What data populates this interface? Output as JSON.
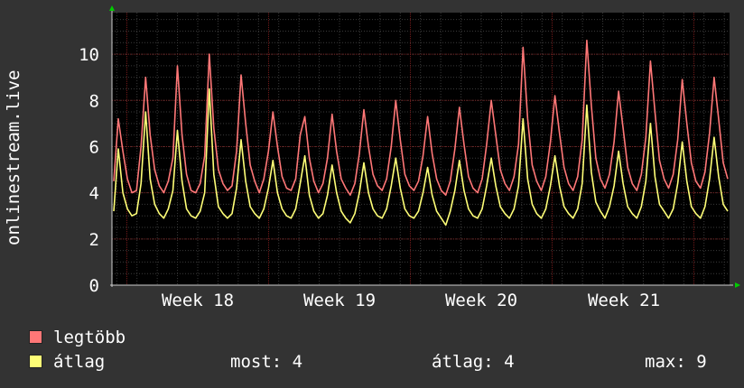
{
  "chart_data": {
    "type": "line",
    "title": "",
    "ylabel": "onlinestream.live",
    "ylim": [
      0,
      11.8
    ],
    "yticks": [
      0,
      2,
      4,
      6,
      8,
      10
    ],
    "xticks": [
      "Week 18",
      "Week 19",
      "Week 20",
      "Week 21"
    ],
    "grid": true,
    "colors": {
      "background": "#333333",
      "plot": "#000000",
      "grid": "#555555",
      "series_max": "#ff7777",
      "series_avg": "#ffff77",
      "axis_arrow": "#00cc00"
    },
    "series": [
      {
        "name": "legtöbb",
        "color": "#ff7777",
        "values": [
          4.5,
          7.2,
          5.8,
          4.6,
          4.0,
          4.1,
          6.0,
          9.0,
          6.5,
          5.0,
          4.3,
          4.0,
          4.5,
          5.5,
          9.5,
          6.5,
          4.8,
          4.1,
          4.0,
          4.4,
          5.6,
          10.0,
          6.8,
          5.0,
          4.4,
          4.1,
          4.3,
          5.8,
          9.1,
          7.0,
          5.2,
          4.5,
          4.0,
          4.6,
          5.8,
          7.5,
          6.0,
          4.7,
          4.2,
          4.1,
          4.6,
          6.5,
          7.3,
          5.5,
          4.5,
          4.0,
          4.4,
          5.5,
          7.4,
          5.8,
          4.6,
          4.2,
          3.9,
          4.4,
          5.7,
          7.6,
          6.0,
          4.8,
          4.3,
          4.1,
          4.6,
          6.0,
          8.0,
          6.3,
          4.8,
          4.3,
          4.1,
          4.5,
          5.6,
          7.3,
          5.7,
          4.6,
          4.1,
          3.9,
          4.5,
          5.9,
          7.7,
          6.1,
          4.7,
          4.2,
          4.0,
          4.6,
          6.1,
          8.0,
          6.5,
          5.0,
          4.4,
          4.1,
          4.7,
          6.1,
          10.3,
          7.2,
          5.2,
          4.5,
          4.1,
          4.7,
          6.2,
          8.2,
          6.6,
          5.1,
          4.4,
          4.1,
          4.7,
          6.3,
          10.6,
          7.8,
          5.5,
          4.6,
          4.2,
          4.8,
          6.2,
          8.4,
          6.8,
          5.1,
          4.4,
          4.1,
          4.8,
          6.4,
          9.7,
          7.5,
          5.4,
          4.6,
          4.2,
          4.8,
          6.3,
          8.9,
          7.0,
          5.3,
          4.5,
          4.2,
          4.9,
          6.6,
          9.0,
          7.2,
          5.3,
          4.6
        ],
        "legend_label": "legtöbb"
      },
      {
        "name": "átlag",
        "color": "#ffff77",
        "values": [
          3.2,
          5.9,
          4.0,
          3.3,
          3.0,
          3.1,
          4.4,
          7.5,
          4.6,
          3.5,
          3.1,
          2.9,
          3.3,
          4.1,
          6.7,
          4.5,
          3.3,
          3.0,
          2.9,
          3.2,
          4.0,
          8.5,
          4.8,
          3.4,
          3.1,
          2.9,
          3.1,
          4.2,
          6.3,
          4.5,
          3.4,
          3.1,
          2.9,
          3.3,
          4.2,
          5.4,
          4.0,
          3.3,
          3.0,
          2.9,
          3.3,
          4.4,
          5.6,
          3.9,
          3.2,
          2.9,
          3.1,
          3.9,
          5.2,
          4.0,
          3.2,
          2.9,
          2.7,
          3.1,
          4.0,
          5.3,
          4.0,
          3.3,
          3.0,
          2.9,
          3.3,
          4.3,
          5.5,
          4.2,
          3.3,
          3.0,
          2.9,
          3.2,
          4.0,
          5.1,
          3.9,
          3.2,
          2.9,
          2.6,
          3.2,
          4.1,
          5.4,
          4.1,
          3.3,
          3.0,
          2.9,
          3.3,
          4.3,
          5.5,
          4.3,
          3.4,
          3.1,
          2.9,
          3.3,
          4.3,
          7.2,
          4.6,
          3.5,
          3.1,
          2.9,
          3.3,
          4.3,
          5.6,
          4.3,
          3.4,
          3.1,
          2.9,
          3.3,
          4.4,
          7.8,
          4.9,
          3.6,
          3.2,
          2.9,
          3.4,
          4.3,
          5.8,
          4.4,
          3.4,
          3.1,
          2.9,
          3.4,
          4.5,
          7.0,
          4.7,
          3.5,
          3.2,
          2.9,
          3.3,
          4.4,
          6.2,
          4.5,
          3.4,
          3.1,
          2.9,
          3.4,
          4.6,
          6.4,
          4.7,
          3.5,
          3.2
        ],
        "legend_label": "átlag"
      }
    ],
    "stats": {
      "most_label": "most:",
      "most_value": "4",
      "atlag_label": "átlag:",
      "atlag_value": "4",
      "max_label": "max:",
      "max_value": "9"
    }
  }
}
